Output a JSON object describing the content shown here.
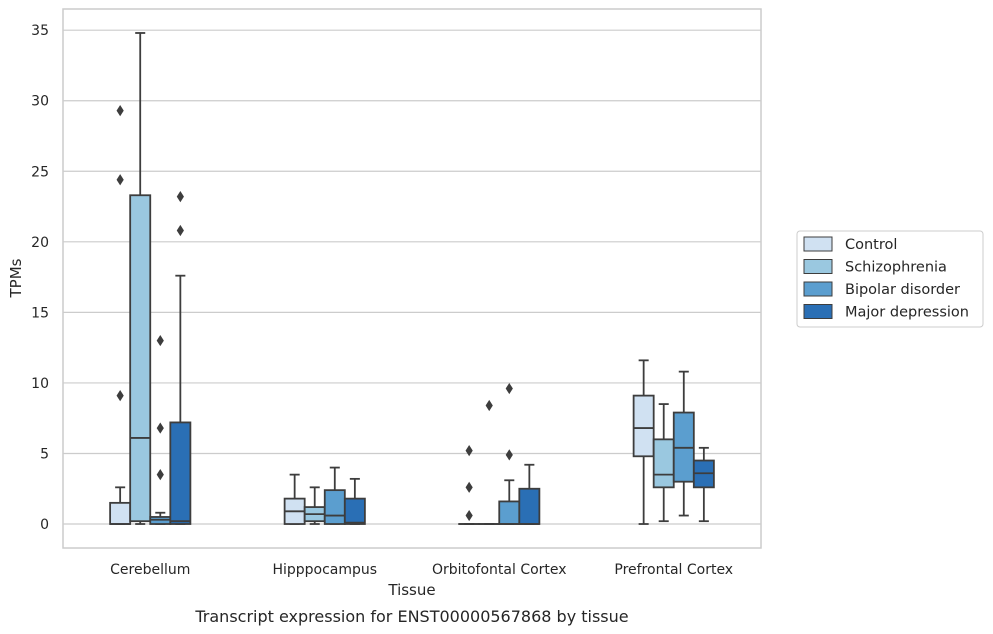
{
  "chart_data": {
    "type": "box",
    "title": "",
    "caption": "Transcript expression for ENST00000567868 by tissue",
    "xlabel": "Tissue",
    "ylabel": "TPMs",
    "ylim": [
      -1.7,
      36.5
    ],
    "yticks": [
      0,
      5,
      10,
      15,
      20,
      25,
      30,
      35
    ],
    "grid": "horizontal",
    "legend_position": "right",
    "categories": [
      "Cerebellum",
      "Hipppocampus",
      "Orbitofontal Cortex",
      "Prefrontal Cortex"
    ],
    "series": [
      {
        "name": "Control",
        "color": "#d0e1f2",
        "boxes": [
          {
            "min": 0,
            "q1": 0,
            "median": 0,
            "q3": 1.5,
            "max": 2.6,
            "outliers": [
              9.1,
              24.4,
              29.3
            ]
          },
          {
            "min": 0,
            "q1": 0,
            "median": 0.9,
            "q3": 1.8,
            "max": 3.5,
            "outliers": []
          },
          {
            "min": 0,
            "q1": 0,
            "median": 0,
            "q3": 0,
            "max": 0,
            "outliers": [
              0.6,
              2.6,
              5.2
            ]
          },
          {
            "min": 0,
            "q1": 4.8,
            "median": 6.8,
            "q3": 9.1,
            "max": 11.6,
            "outliers": []
          }
        ]
      },
      {
        "name": "Schizophrenia",
        "color": "#9ac8e0",
        "boxes": [
          {
            "min": 0,
            "q1": 0.2,
            "median": 6.1,
            "q3": 23.3,
            "max": 34.8,
            "outliers": []
          },
          {
            "min": 0,
            "q1": 0.2,
            "median": 0.7,
            "q3": 1.2,
            "max": 2.6,
            "outliers": []
          },
          {
            "min": 0,
            "q1": 0,
            "median": 0,
            "q3": 0,
            "max": 0,
            "outliers": [
              8.4
            ]
          },
          {
            "min": 0.2,
            "q1": 2.6,
            "median": 3.5,
            "q3": 6.0,
            "max": 8.5,
            "outliers": []
          }
        ]
      },
      {
        "name": "Bipolar disorder",
        "color": "#5b9ecf",
        "boxes": [
          {
            "min": 0,
            "q1": 0,
            "median": 0.3,
            "q3": 0.5,
            "max": 0.8,
            "outliers": [
              3.5,
              6.8,
              13.0
            ]
          },
          {
            "min": 0,
            "q1": 0,
            "median": 0.6,
            "q3": 2.4,
            "max": 4.0,
            "outliers": []
          },
          {
            "min": 0,
            "q1": 0,
            "median": 0,
            "q3": 1.6,
            "max": 3.1,
            "outliers": [
              4.9,
              9.6
            ]
          },
          {
            "min": 0.6,
            "q1": 3.0,
            "median": 5.4,
            "q3": 7.9,
            "max": 10.8,
            "outliers": []
          }
        ]
      },
      {
        "name": "Major depression",
        "color": "#2a6fb5",
        "boxes": [
          {
            "min": 0,
            "q1": 0,
            "median": 0.2,
            "q3": 7.2,
            "max": 17.6,
            "outliers": [
              20.8,
              23.2
            ]
          },
          {
            "min": 0,
            "q1": 0,
            "median": 0.1,
            "q3": 1.8,
            "max": 3.2,
            "outliers": []
          },
          {
            "min": 0,
            "q1": 0,
            "median": 0,
            "q3": 2.5,
            "max": 4.2,
            "outliers": []
          },
          {
            "min": 0.2,
            "q1": 2.6,
            "median": 3.6,
            "q3": 4.5,
            "max": 5.4,
            "outliers": []
          }
        ]
      }
    ]
  }
}
